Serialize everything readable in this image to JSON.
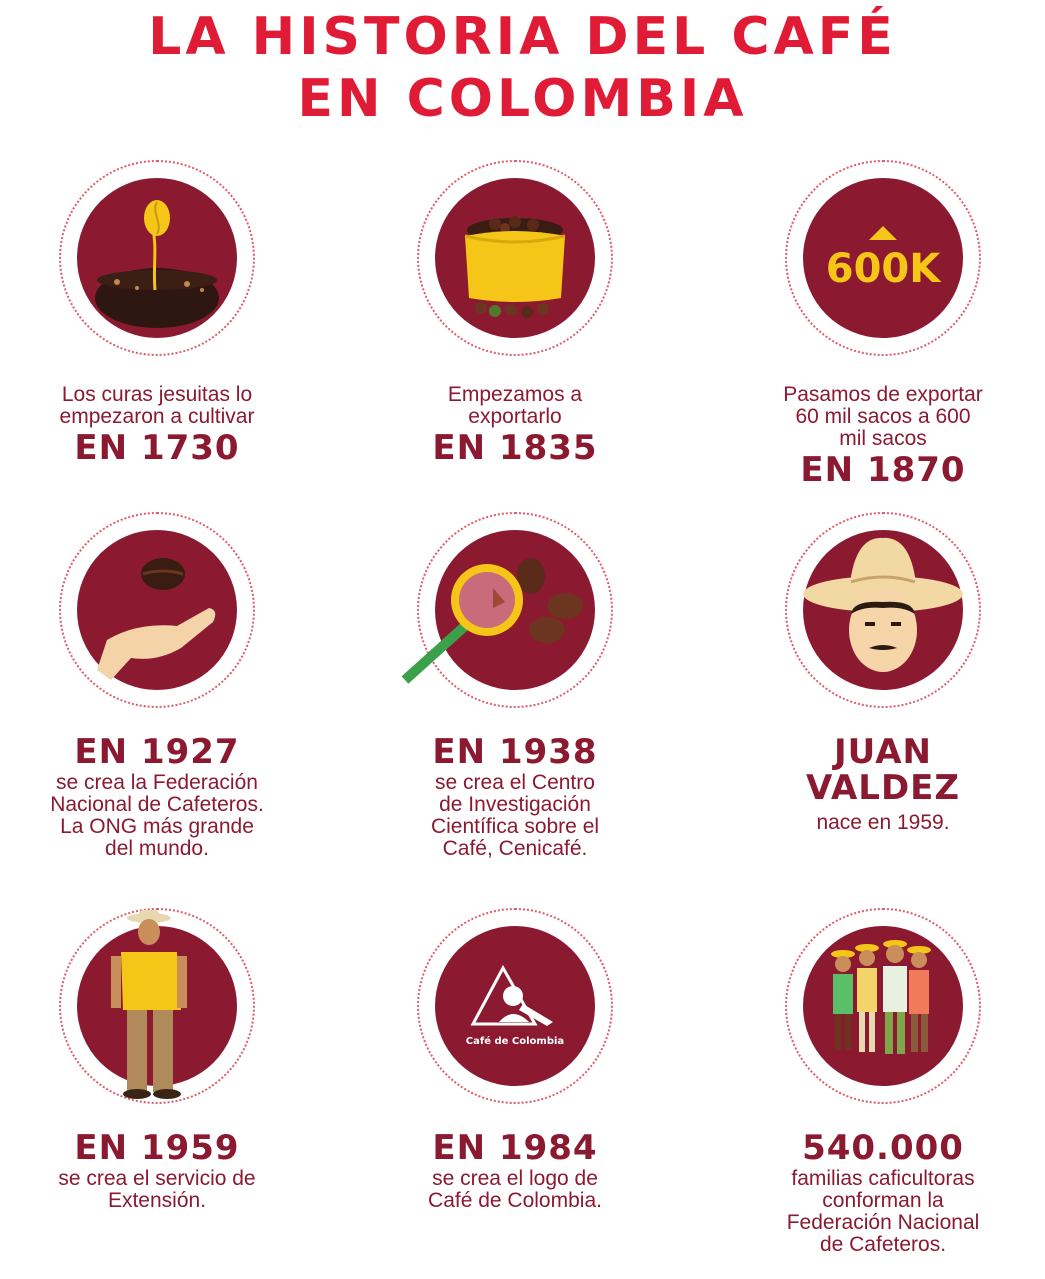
{
  "title": {
    "line1": "LA HISTORIA DEL CAFÉ",
    "line2": "EN COLOMBIA"
  },
  "items": [
    {
      "icon": "coffee-sprout-icon",
      "text": [
        "Los curas jesuitas lo",
        "empezaron a cultivar"
      ],
      "highlight": [
        "EN 1730"
      ]
    },
    {
      "icon": "coffee-sack-icon",
      "text": [
        "Empezamos a",
        "exportarlo"
      ],
      "highlight": [
        "EN 1835"
      ]
    },
    {
      "icon": "growth-600k-icon",
      "icon_text": "600K",
      "text": [
        "Pasamos de exportar",
        "60 mil sacos a 600",
        "mil sacos"
      ],
      "highlight": [
        "EN 1870"
      ]
    },
    {
      "icon": "hand-bean-icon",
      "highlight": [
        "EN 1927"
      ],
      "text": [
        "se crea la Federación",
        "Nacional de Cafeteros.",
        "La ONG más grande",
        "del mundo."
      ]
    },
    {
      "icon": "magnifier-beans-icon",
      "highlight": [
        "EN 1938"
      ],
      "text": [
        "se crea el Centro",
        "de Investigación",
        "Científica sobre el",
        "Café, Cenicafé."
      ]
    },
    {
      "icon": "juan-valdez-face-icon",
      "highlight": [
        "JUAN",
        "VALDEZ"
      ],
      "text": [
        "nace en 1959."
      ]
    },
    {
      "icon": "farmer-icon",
      "highlight": [
        "EN 1959"
      ],
      "text": [
        "se crea el servicio de",
        "Extensión."
      ]
    },
    {
      "icon": "cafe-de-colombia-logo-icon",
      "icon_text": "Café de Colombia",
      "highlight": [
        "EN 1984"
      ],
      "text": [
        "se crea el logo de",
        "Café de Colombia."
      ]
    },
    {
      "icon": "families-icon",
      "highlight": [
        "540.000"
      ],
      "text": [
        "familias caficultoras",
        "conforman la",
        "Federación Nacional",
        "de Cafeteros."
      ]
    }
  ],
  "colors": {
    "title": "#e01b36",
    "disc": "#8b1a31",
    "text": "#8b1a31",
    "ring": "#e05a6a",
    "accent_yellow": "#f5c518"
  }
}
